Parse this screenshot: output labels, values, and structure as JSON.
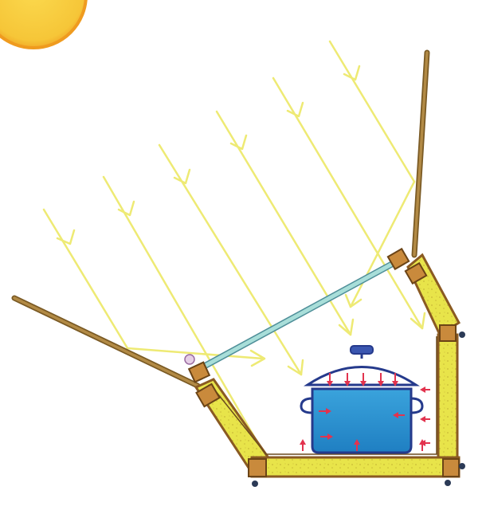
{
  "diagram": {
    "colors": {
      "background": "#ffffff",
      "sun_fill": "#f6c638",
      "sun_edge": "#ef9b1f",
      "ray": "#eeea74",
      "reflector": "#a07d3a",
      "glass": "#a8ded9",
      "insulation": "#e8e44a",
      "insulation_dots": "#c9b936",
      "wood_frame": "#9b6b2f",
      "corner_block": "#c98a3c",
      "water": "#2d8fcf",
      "pot_outline": "#253a8c",
      "heat_arrow": "#e2334e",
      "hinge": "#d7b6d6",
      "feet": "#2b3a56"
    },
    "components": [
      "sun",
      "incoming-rays",
      "left-reflector",
      "right-reflector",
      "glass-cover",
      "insulated-box",
      "cooking-pot",
      "water",
      "heat-arrows"
    ]
  }
}
